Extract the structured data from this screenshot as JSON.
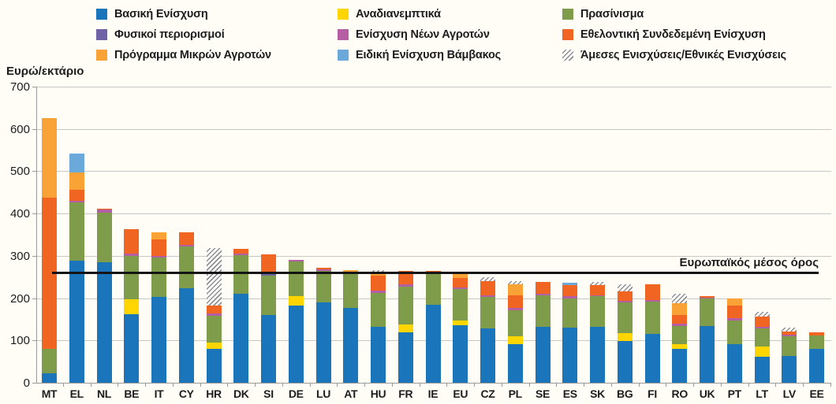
{
  "unit_label": "Ευρώ/εκτάριο",
  "chart_data": {
    "type": "bar",
    "subtype": "stacked-vertical",
    "unit": "Ευρώ/εκτάριο",
    "ylim": [
      0,
      700
    ],
    "yticks": [
      0,
      100,
      200,
      300,
      400,
      500,
      600,
      700
    ],
    "grid": "horizontal",
    "legend_position": "top",
    "average_line": {
      "value": 260,
      "label": "Ευρωπαϊκός μέσος όρος",
      "color": "#141414"
    },
    "legend": [
      {
        "key": "basic",
        "label": "Βασική Ενίσχυση",
        "color": "#1b75bb"
      },
      {
        "key": "redistributive",
        "label": "Αναδιανεμπτικά",
        "color": "#ffd500"
      },
      {
        "key": "greening",
        "label": "Πρασίνισμα",
        "color": "#7e9c49"
      },
      {
        "key": "anc",
        "label": "Φυσικοί περιορισμοί",
        "color": "#6f62a5"
      },
      {
        "key": "young",
        "label": "Ενίσχυση Νέων Αγροτών",
        "color": "#b55ea4"
      },
      {
        "key": "vcs",
        "label": "Εθελοντική Συνδεδεμένη Ενίσχυση",
        "color": "#f16522"
      },
      {
        "key": "small",
        "label": "Πρόγραμμα Μικρών Αγροτών",
        "color": "#f9a235"
      },
      {
        "key": "cotton",
        "label": "Ειδική Ενίσχυση Βάμβακος",
        "color": "#6aa9da"
      },
      {
        "key": "national",
        "label": "Άμεσες Ενισχύσεις/Εθνικές Ενισχύσεις",
        "color": "hatch"
      }
    ],
    "categories": [
      "MT",
      "EL",
      "NL",
      "BE",
      "IT",
      "CY",
      "HR",
      "DK",
      "SI",
      "DE",
      "LU",
      "AT",
      "HU",
      "FR",
      "IE",
      "EU",
      "CZ",
      "PL",
      "SE",
      "ES",
      "SK",
      "BG",
      "FI",
      "RO",
      "UK",
      "PT",
      "LT",
      "LV",
      "EE"
    ],
    "series": [
      {
        "key": "basic",
        "values": [
          22,
          288,
          285,
          162,
          203,
          223,
          80,
          211,
          160,
          183,
          190,
          177,
          132,
          120,
          184,
          136,
          129,
          92,
          133,
          130,
          132,
          98,
          115,
          80,
          135,
          91,
          61,
          64,
          81
        ]
      },
      {
        "key": "redistributive",
        "values": [
          0,
          0,
          0,
          35,
          0,
          0,
          15,
          0,
          0,
          22,
          0,
          0,
          0,
          18,
          0,
          12,
          0,
          18,
          0,
          0,
          0,
          20,
          0,
          11,
          0,
          0,
          25,
          0,
          0
        ]
      },
      {
        "key": "greening",
        "values": [
          59,
          138,
          118,
          103,
          93,
          99,
          63,
          90,
          93,
          82,
          74,
          80,
          81,
          90,
          74,
          74,
          74,
          62,
          73,
          70,
          73,
          72,
          76,
          44,
          64,
          57,
          43,
          45,
          31
        ]
      },
      {
        "key": "anc",
        "values": [
          0,
          0,
          0,
          0,
          0,
          0,
          0,
          0,
          4,
          0,
          0,
          0,
          0,
          0,
          0,
          0,
          0,
          0,
          0,
          0,
          0,
          0,
          0,
          0,
          0,
          0,
          0,
          0,
          0
        ]
      },
      {
        "key": "young",
        "values": [
          0,
          5,
          6,
          6,
          4,
          3,
          5,
          4,
          5,
          4,
          5,
          4,
          4,
          5,
          3,
          4,
          3,
          5,
          4,
          4,
          2,
          4,
          4,
          4,
          2,
          4,
          4,
          4,
          0
        ]
      },
      {
        "key": "vcs",
        "values": [
          357,
          26,
          3,
          58,
          39,
          31,
          20,
          12,
          42,
          0,
          3,
          0,
          36,
          32,
          3,
          22,
          35,
          30,
          28,
          27,
          23,
          22,
          37,
          21,
          4,
          31,
          24,
          8,
          8
        ]
      },
      {
        "key": "small",
        "values": [
          187,
          40,
          0,
          0,
          17,
          0,
          0,
          0,
          0,
          0,
          0,
          5,
          5,
          0,
          0,
          12,
          0,
          26,
          0,
          0,
          0,
          0,
          0,
          28,
          0,
          17,
          0,
          0,
          0
        ]
      },
      {
        "key": "cotton",
        "values": [
          0,
          45,
          0,
          0,
          0,
          0,
          0,
          0,
          0,
          0,
          0,
          0,
          0,
          0,
          0,
          0,
          0,
          0,
          0,
          6,
          0,
          0,
          0,
          0,
          0,
          0,
          0,
          0,
          0
        ]
      },
      {
        "key": "national",
        "values": [
          0,
          0,
          0,
          0,
          0,
          0,
          135,
          0,
          0,
          0,
          0,
          0,
          8,
          0,
          0,
          0,
          9,
          7,
          0,
          0,
          8,
          16,
          0,
          23,
          0,
          0,
          10,
          9,
          0
        ]
      }
    ],
    "totals": [
      625,
      542,
      412,
      364,
      356,
      356,
      318,
      317,
      304,
      291,
      272,
      266,
      266,
      265,
      264,
      260,
      250,
      240,
      238,
      237,
      238,
      232,
      232,
      211,
      205,
      200,
      167,
      130,
      120
    ]
  }
}
